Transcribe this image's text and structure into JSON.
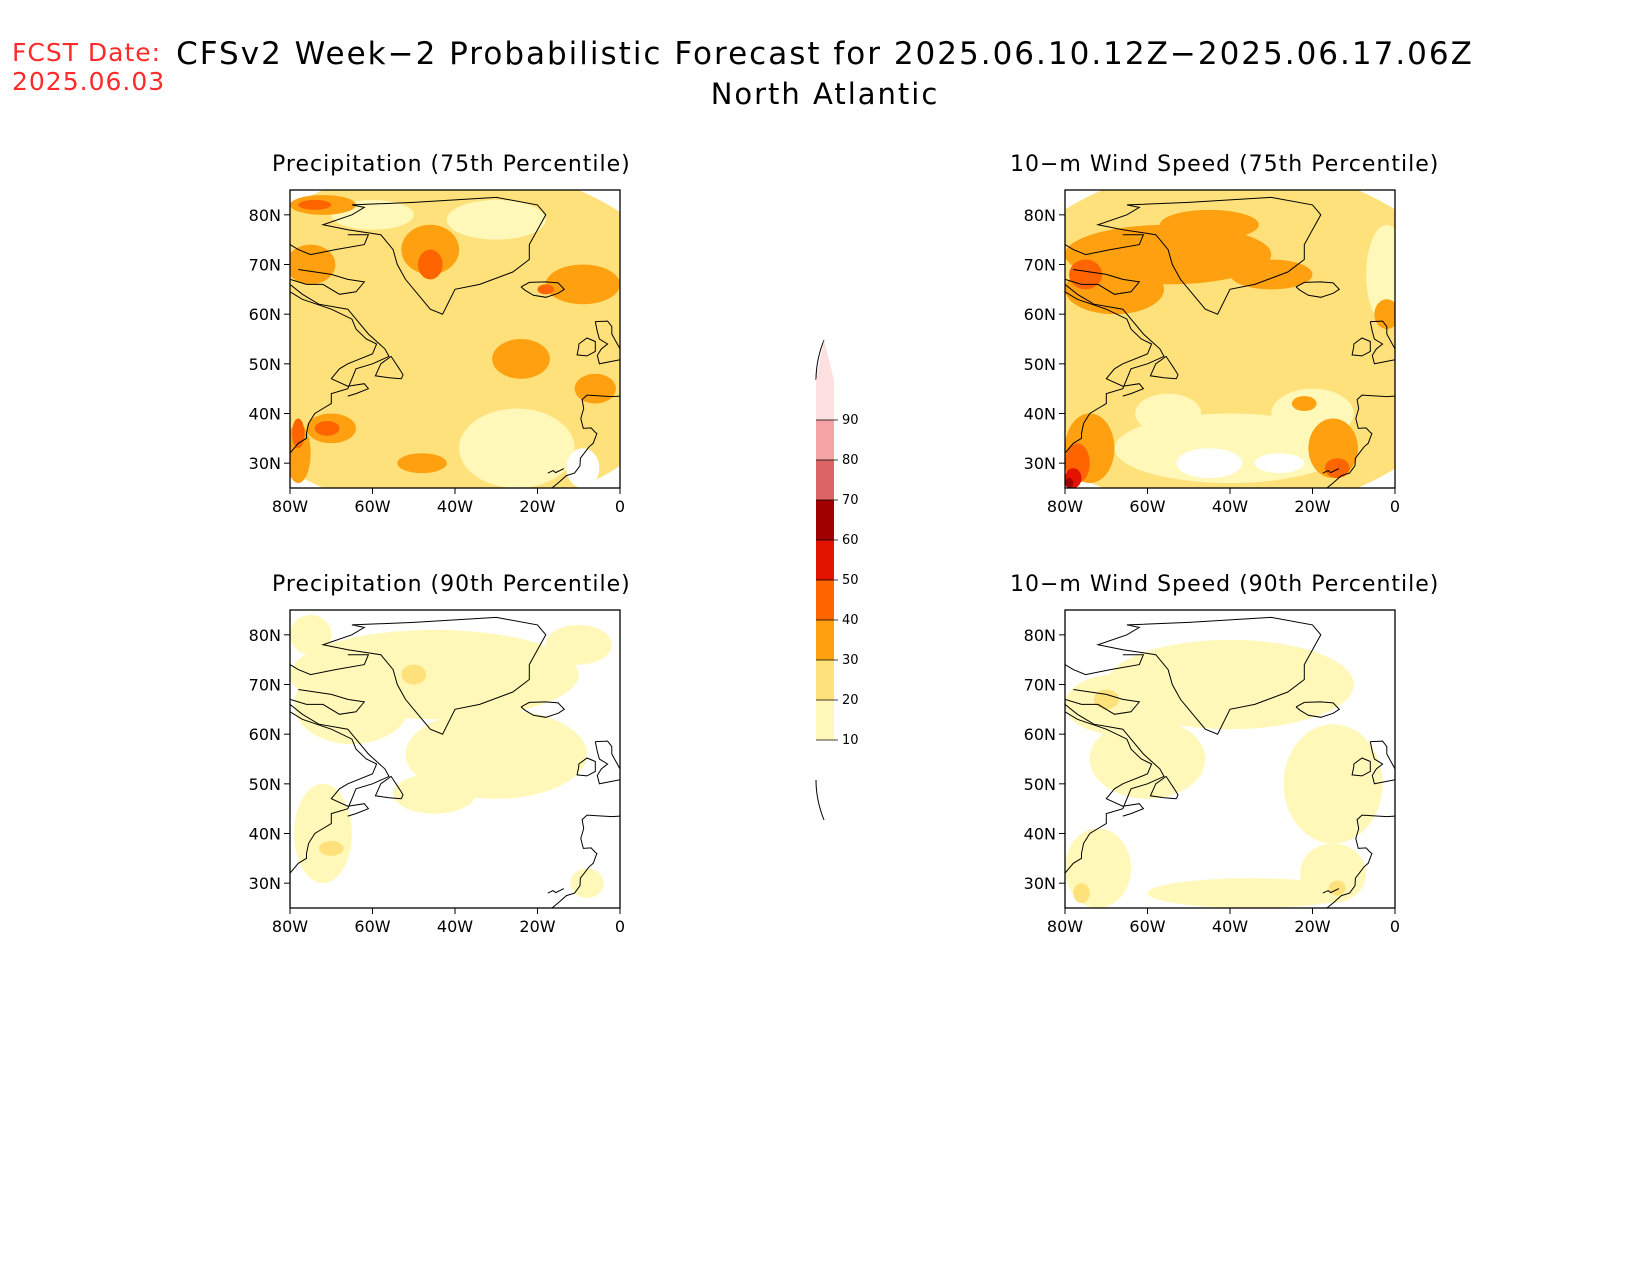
{
  "header": {
    "fcst_label": "FCST Date:",
    "fcst_date": "2025.06.03",
    "title": "CFSv2 Week−2 Probabilistic Forecast for 2025.06.10.12Z−2025.06.17.06Z",
    "subtitle": "North Atlantic"
  },
  "colors": {
    "scale": [
      "#ffffff",
      "#fff8b8",
      "#fee17a",
      "#fea010",
      "#fe6400",
      "#e21400",
      "#a00000",
      "#dc6464",
      "#f4a4a4",
      "#ffe0e0"
    ],
    "coast": "#000000",
    "fcst": "#ff2a2a"
  },
  "colorbar": {
    "levels": [
      "10",
      "20",
      "30",
      "40",
      "50",
      "60",
      "70",
      "80",
      "90"
    ]
  },
  "axes": {
    "lon_ticks": [
      "80W",
      "60W",
      "40W",
      "20W",
      "0"
    ],
    "lat_ticks": [
      "80N",
      "70N",
      "60N",
      "50N",
      "40N",
      "30N"
    ]
  },
  "panels": [
    {
      "title": "Precipitation (75th Percentile)",
      "regions": [
        {
          "lvl": 2,
          "lon": -41,
          "lat": 55,
          "rlon": 60,
          "rlat": 35
        },
        {
          "lvl": 1,
          "lon": -25,
          "lat": 33,
          "rlon": 14,
          "rlat": 8
        },
        {
          "lvl": 1,
          "lon": -30,
          "lat": 79,
          "rlon": 12,
          "rlat": 4
        },
        {
          "lvl": 1,
          "lon": -60,
          "lat": 80,
          "rlon": 10,
          "rlat": 3
        },
        {
          "lvl": 0,
          "lon": -9,
          "lat": 29,
          "rlon": 4,
          "rlat": 4
        },
        {
          "lvl": 3,
          "lon": -46,
          "lat": 73,
          "rlon": 7,
          "rlat": 5
        },
        {
          "lvl": 3,
          "lon": -75,
          "lat": 70,
          "rlon": 6,
          "rlat": 4
        },
        {
          "lvl": 3,
          "lon": -72,
          "lat": 82,
          "rlon": 8,
          "rlat": 2
        },
        {
          "lvl": 3,
          "lon": -24,
          "lat": 51,
          "rlon": 7,
          "rlat": 4
        },
        {
          "lvl": 3,
          "lon": -70,
          "lat": 37,
          "rlon": 6,
          "rlat": 3
        },
        {
          "lvl": 3,
          "lon": -78,
          "lat": 32,
          "rlon": 3,
          "rlat": 6
        },
        {
          "lvl": 3,
          "lon": -9,
          "lat": 66,
          "rlon": 9,
          "rlat": 4
        },
        {
          "lvl": 3,
          "lon": -6,
          "lat": 45,
          "rlon": 5,
          "rlat": 3
        },
        {
          "lvl": 3,
          "lon": -48,
          "lat": 30,
          "rlon": 6,
          "rlat": 2
        },
        {
          "lvl": 4,
          "lon": -46,
          "lat": 70,
          "rlon": 3,
          "rlat": 3
        },
        {
          "lvl": 4,
          "lon": -71,
          "lat": 37,
          "rlon": 3,
          "rlat": 1.5
        },
        {
          "lvl": 4,
          "lon": -78,
          "lat": 36,
          "rlon": 1.5,
          "rlat": 3
        },
        {
          "lvl": 4,
          "lon": -18,
          "lat": 65,
          "rlon": 2,
          "rlat": 1
        },
        {
          "lvl": 4,
          "lon": -74,
          "lat": 82,
          "rlon": 4,
          "rlat": 1
        }
      ]
    },
    {
      "title": "10−m Wind Speed (75th Percentile)",
      "regions": [
        {
          "lvl": 2,
          "lon": -40,
          "lat": 55,
          "rlon": 60,
          "rlat": 35
        },
        {
          "lvl": 1,
          "lon": -40,
          "lat": 33,
          "rlon": 28,
          "rlat": 7
        },
        {
          "lvl": 1,
          "lon": -20,
          "lat": 40,
          "rlon": 10,
          "rlat": 5
        },
        {
          "lvl": 1,
          "lon": -55,
          "lat": 40,
          "rlon": 8,
          "rlat": 4
        },
        {
          "lvl": 1,
          "lon": -2,
          "lat": 68,
          "rlon": 5,
          "rlat": 10
        },
        {
          "lvl": 0,
          "lon": -45,
          "lat": 30,
          "rlon": 8,
          "rlat": 3
        },
        {
          "lvl": 0,
          "lon": -28,
          "lat": 30,
          "rlon": 6,
          "rlat": 2
        },
        {
          "lvl": 3,
          "lon": -55,
          "lat": 72,
          "rlon": 25,
          "rlat": 6
        },
        {
          "lvl": 3,
          "lon": -68,
          "lat": 65,
          "rlon": 12,
          "rlat": 5
        },
        {
          "lvl": 3,
          "lon": -30,
          "lat": 68,
          "rlon": 10,
          "rlat": 3
        },
        {
          "lvl": 3,
          "lon": -74,
          "lat": 33,
          "rlon": 6,
          "rlat": 7
        },
        {
          "lvl": 3,
          "lon": -15,
          "lat": 33,
          "rlon": 6,
          "rlat": 6
        },
        {
          "lvl": 3,
          "lon": -45,
          "lat": 78,
          "rlon": 12,
          "rlat": 3
        },
        {
          "lvl": 3,
          "lon": -2,
          "lat": 60,
          "rlon": 3,
          "rlat": 3
        },
        {
          "lvl": 3,
          "lon": -22,
          "lat": 42,
          "rlon": 3,
          "rlat": 1.5
        },
        {
          "lvl": 4,
          "lon": -75,
          "lat": 68,
          "rlon": 4,
          "rlat": 3
        },
        {
          "lvl": 4,
          "lon": -77,
          "lat": 30,
          "rlon": 3,
          "rlat": 4
        },
        {
          "lvl": 4,
          "lon": -14,
          "lat": 29,
          "rlon": 3,
          "rlat": 2
        },
        {
          "lvl": 5,
          "lon": -78,
          "lat": 27,
          "rlon": 2,
          "rlat": 2
        },
        {
          "lvl": 6,
          "lon": -79,
          "lat": 26,
          "rlon": 1,
          "rlat": 1
        }
      ]
    },
    {
      "title": "Precipitation (90th Percentile)",
      "regions": [
        {
          "lvl": 1,
          "lon": -45,
          "lat": 72,
          "rlon": 35,
          "rlat": 9
        },
        {
          "lvl": 1,
          "lon": -30,
          "lat": 56,
          "rlon": 22,
          "rlat": 9
        },
        {
          "lvl": 1,
          "lon": -65,
          "lat": 66,
          "rlon": 14,
          "rlat": 8
        },
        {
          "lvl": 1,
          "lon": -72,
          "lat": 40,
          "rlon": 7,
          "rlat": 10
        },
        {
          "lvl": 1,
          "lon": -45,
          "lat": 48,
          "rlon": 10,
          "rlat": 4
        },
        {
          "lvl": 1,
          "lon": -8,
          "lat": 30,
          "rlon": 4,
          "rlat": 3
        },
        {
          "lvl": 1,
          "lon": -75,
          "lat": 80,
          "rlon": 5,
          "rlat": 4
        },
        {
          "lvl": 1,
          "lon": -10,
          "lat": 78,
          "rlon": 8,
          "rlat": 4
        },
        {
          "lvl": 2,
          "lon": -70,
          "lat": 37,
          "rlon": 3,
          "rlat": 1.5
        },
        {
          "lvl": 2,
          "lon": -50,
          "lat": 72,
          "rlon": 3,
          "rlat": 2
        }
      ]
    },
    {
      "title": "10−m Wind Speed (90th Percentile)",
      "regions": [
        {
          "lvl": 1,
          "lon": -40,
          "lat": 70,
          "rlon": 30,
          "rlat": 9
        },
        {
          "lvl": 1,
          "lon": -68,
          "lat": 66,
          "rlon": 12,
          "rlat": 6
        },
        {
          "lvl": 1,
          "lon": -60,
          "lat": 55,
          "rlon": 14,
          "rlat": 8
        },
        {
          "lvl": 1,
          "lon": -15,
          "lat": 50,
          "rlon": 12,
          "rlat": 12
        },
        {
          "lvl": 1,
          "lon": -72,
          "lat": 33,
          "rlon": 8,
          "rlat": 8
        },
        {
          "lvl": 1,
          "lon": -35,
          "lat": 28,
          "rlon": 25,
          "rlat": 3
        },
        {
          "lvl": 1,
          "lon": -15,
          "lat": 32,
          "rlon": 8,
          "rlat": 6
        },
        {
          "lvl": 2,
          "lon": -76,
          "lat": 28,
          "rlon": 2,
          "rlat": 2
        },
        {
          "lvl": 2,
          "lon": -14,
          "lat": 29,
          "rlon": 2,
          "rlat": 1.5
        },
        {
          "lvl": 2,
          "lon": -70,
          "lat": 67,
          "rlon": 3,
          "rlat": 2
        }
      ]
    }
  ]
}
